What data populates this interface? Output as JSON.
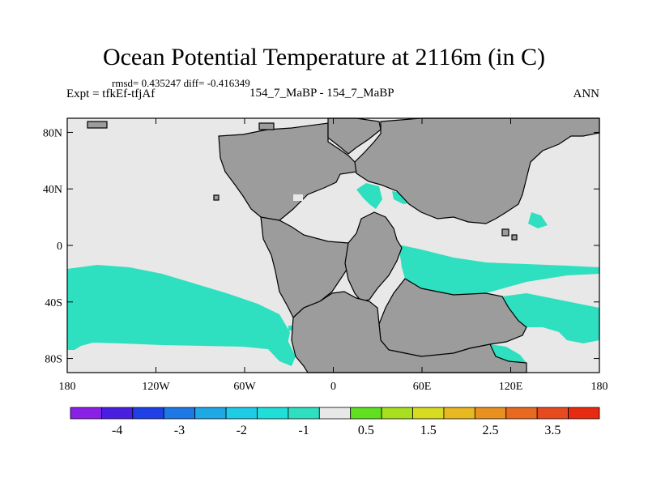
{
  "figure": {
    "title": "Ocean Potential Temperature at 2116m (in C)",
    "stats": "rmsd= 0.435247 diff= -0.416349",
    "expt": "Expt = tfkEf-tfjAf",
    "experiments": "154_7_MaBP - 154_7_MaBP",
    "season": "ANN"
  },
  "map": {
    "lon_range": [
      -180,
      180
    ],
    "lat_range": [
      -90,
      90
    ],
    "x_ticks": [
      {
        "value": -180,
        "label": "180"
      },
      {
        "value": -120,
        "label": "120W"
      },
      {
        "value": -60,
        "label": "60W"
      },
      {
        "value": 0,
        "label": "0"
      },
      {
        "value": 60,
        "label": "60E"
      },
      {
        "value": 120,
        "label": "120E"
      },
      {
        "value": 180,
        "label": "180"
      }
    ],
    "y_ticks": [
      {
        "value": 80,
        "label": "80N"
      },
      {
        "value": 40,
        "label": "40N"
      },
      {
        "value": 0,
        "label": "0"
      },
      {
        "value": -40,
        "label": "40S"
      },
      {
        "value": -80,
        "label": "80S"
      }
    ],
    "colors": {
      "land": "#9c9c9c",
      "near_zero": "#e8e8e8",
      "negative_anomaly": "#2ee0c0",
      "coastline": "#000000"
    }
  },
  "colorbar": {
    "colors": [
      "#8a1fe6",
      "#4a1ee0",
      "#1e40e6",
      "#1e78e6",
      "#1ea8e6",
      "#1ecce6",
      "#1ee0d8",
      "#2ee0c0",
      "#e8e8e8",
      "#60e020",
      "#a8e020",
      "#d8dc20",
      "#e8b820",
      "#e89020",
      "#e86a20",
      "#e84a20",
      "#e82a10"
    ],
    "labels": [
      "-4",
      "-3",
      "-2",
      "-1",
      "0.5",
      "1.5",
      "2.5",
      "3.5"
    ]
  }
}
